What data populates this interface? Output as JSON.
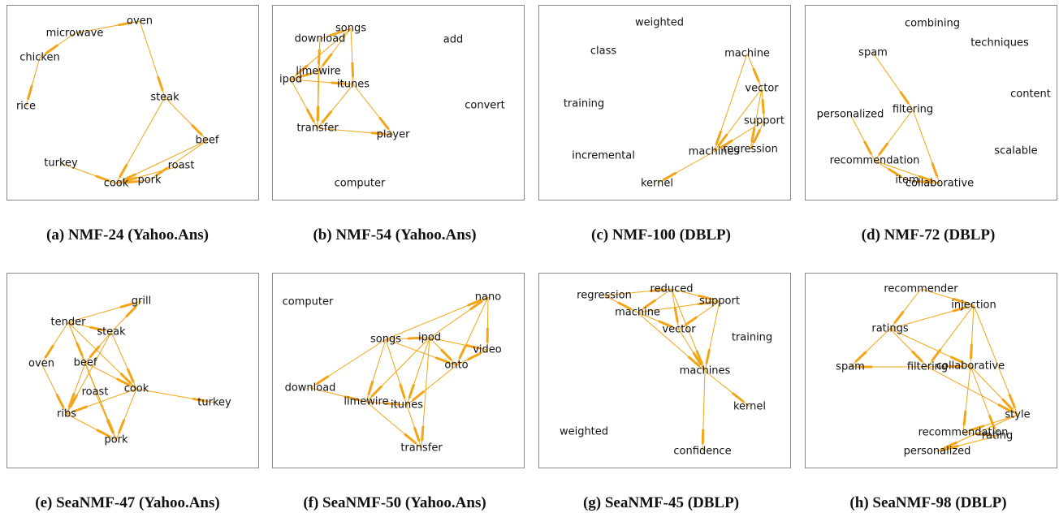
{
  "edge_color": "#f2a516",
  "panels": [
    {
      "caption": "(a) NMF-24 (Yahoo.Ans)",
      "nodes": [
        {
          "label": "oven"
        },
        {
          "label": "microwave"
        },
        {
          "label": "chicken"
        },
        {
          "label": "rice"
        },
        {
          "label": "steak"
        },
        {
          "label": "beef"
        },
        {
          "label": "turkey"
        },
        {
          "label": "roast"
        },
        {
          "label": "pork"
        },
        {
          "label": "cook"
        }
      ],
      "edges": [
        [
          "microwave",
          "oven"
        ],
        [
          "oven",
          "steak"
        ],
        [
          "microwave",
          "chicken"
        ],
        [
          "chicken",
          "rice"
        ],
        [
          "steak",
          "beef"
        ],
        [
          "steak",
          "cook"
        ],
        [
          "beef",
          "cook"
        ],
        [
          "beef",
          "pork"
        ],
        [
          "turkey",
          "cook"
        ],
        [
          "roast",
          "cook"
        ],
        [
          "pork",
          "cook"
        ]
      ]
    },
    {
      "caption": "(b) NMF-54 (Yahoo.Ans)",
      "nodes": [
        {
          "label": "songs"
        },
        {
          "label": "download"
        },
        {
          "label": "add"
        },
        {
          "label": "limewire"
        },
        {
          "label": "ipod"
        },
        {
          "label": "itunes"
        },
        {
          "label": "convert"
        },
        {
          "label": "transfer"
        },
        {
          "label": "player"
        },
        {
          "label": "computer"
        }
      ],
      "edges": [
        [
          "download",
          "songs"
        ],
        [
          "songs",
          "limewire"
        ],
        [
          "songs",
          "itunes"
        ],
        [
          "download",
          "limewire"
        ],
        [
          "download",
          "transfer"
        ],
        [
          "limewire",
          "ipod"
        ],
        [
          "ipod",
          "itunes"
        ],
        [
          "ipod",
          "transfer"
        ],
        [
          "limewire",
          "transfer"
        ],
        [
          "itunes",
          "transfer"
        ],
        [
          "itunes",
          "player"
        ],
        [
          "transfer",
          "player"
        ],
        [
          "songs",
          "ipod"
        ]
      ]
    },
    {
      "caption": "(c) NMF-100 (DBLP)",
      "nodes": [
        {
          "label": "weighted"
        },
        {
          "label": "class"
        },
        {
          "label": "machine"
        },
        {
          "label": "vector"
        },
        {
          "label": "training"
        },
        {
          "label": "support"
        },
        {
          "label": "incremental"
        },
        {
          "label": "machines"
        },
        {
          "label": "regression"
        },
        {
          "label": "kernel"
        }
      ],
      "edges": [
        [
          "machine",
          "vector"
        ],
        [
          "vector",
          "support"
        ],
        [
          "vector",
          "machines"
        ],
        [
          "vector",
          "regression"
        ],
        [
          "support",
          "machines"
        ],
        [
          "machines",
          "kernel"
        ],
        [
          "machine",
          "machines"
        ],
        [
          "support",
          "regression"
        ]
      ]
    },
    {
      "caption": "(d) NMF-72 (DBLP)",
      "nodes": [
        {
          "label": "combining"
        },
        {
          "label": "spam"
        },
        {
          "label": "techniques"
        },
        {
          "label": "content"
        },
        {
          "label": "filtering"
        },
        {
          "label": "personalized"
        },
        {
          "label": "recommendation"
        },
        {
          "label": "scalable"
        },
        {
          "label": "item"
        },
        {
          "label": "collaborative"
        }
      ],
      "edges": [
        [
          "spam",
          "filtering"
        ],
        [
          "filtering",
          "collaborative"
        ],
        [
          "personalized",
          "recommendation"
        ],
        [
          "recommendation",
          "collaborative"
        ],
        [
          "recommendation",
          "item"
        ],
        [
          "item",
          "collaborative"
        ],
        [
          "filtering",
          "recommendation"
        ]
      ]
    },
    {
      "caption": "(e) SeaNMF-47 (Yahoo.Ans)",
      "nodes": [
        {
          "label": "grill"
        },
        {
          "label": "tender"
        },
        {
          "label": "steak"
        },
        {
          "label": "oven"
        },
        {
          "label": "beef"
        },
        {
          "label": "roast"
        },
        {
          "label": "cook"
        },
        {
          "label": "turkey"
        },
        {
          "label": "ribs"
        },
        {
          "label": "pork"
        }
      ],
      "edges": [
        [
          "tender",
          "grill"
        ],
        [
          "steak",
          "grill"
        ],
        [
          "tender",
          "steak"
        ],
        [
          "tender",
          "oven"
        ],
        [
          "tender",
          "beef"
        ],
        [
          "tender",
          "cook"
        ],
        [
          "tender",
          "pork"
        ],
        [
          "steak",
          "beef"
        ],
        [
          "steak",
          "cook"
        ],
        [
          "steak",
          "ribs"
        ],
        [
          "oven",
          "ribs"
        ],
        [
          "beef",
          "ribs"
        ],
        [
          "beef",
          "pork"
        ],
        [
          "beef",
          "cook"
        ],
        [
          "cook",
          "turkey"
        ],
        [
          "cook",
          "ribs"
        ],
        [
          "cook",
          "pork"
        ],
        [
          "ribs",
          "pork"
        ],
        [
          "roast",
          "pork"
        ]
      ]
    },
    {
      "caption": "(f) SeaNMF-50 (Yahoo.Ans)",
      "nodes": [
        {
          "label": "nano"
        },
        {
          "label": "computer"
        },
        {
          "label": "songs"
        },
        {
          "label": "ipod"
        },
        {
          "label": "video"
        },
        {
          "label": "onto"
        },
        {
          "label": "download"
        },
        {
          "label": "limewire"
        },
        {
          "label": "itunes"
        },
        {
          "label": "transfer"
        }
      ],
      "edges": [
        [
          "songs",
          "nano"
        ],
        [
          "ipod",
          "nano"
        ],
        [
          "nano",
          "video"
        ],
        [
          "nano",
          "onto"
        ],
        [
          "songs",
          "ipod"
        ],
        [
          "songs",
          "onto"
        ],
        [
          "songs",
          "download"
        ],
        [
          "songs",
          "limewire"
        ],
        [
          "songs",
          "itunes"
        ],
        [
          "ipod",
          "onto"
        ],
        [
          "ipod",
          "limewire"
        ],
        [
          "ipod",
          "itunes"
        ],
        [
          "ipod",
          "transfer"
        ],
        [
          "ipod",
          "video"
        ],
        [
          "onto",
          "video"
        ],
        [
          "download",
          "limewire"
        ],
        [
          "limewire",
          "itunes"
        ],
        [
          "limewire",
          "transfer"
        ],
        [
          "itunes",
          "transfer"
        ],
        [
          "onto",
          "itunes"
        ]
      ]
    },
    {
      "caption": "(g) SeaNMF-45 (DBLP)",
      "nodes": [
        {
          "label": "regression"
        },
        {
          "label": "reduced"
        },
        {
          "label": "support"
        },
        {
          "label": "machine"
        },
        {
          "label": "vector"
        },
        {
          "label": "training"
        },
        {
          "label": "machines"
        },
        {
          "label": "kernel"
        },
        {
          "label": "weighted"
        },
        {
          "label": "confidence"
        }
      ],
      "edges": [
        [
          "regression",
          "reduced"
        ],
        [
          "regression",
          "machine"
        ],
        [
          "reduced",
          "support"
        ],
        [
          "reduced",
          "vector"
        ],
        [
          "reduced",
          "machine"
        ],
        [
          "support",
          "vector"
        ],
        [
          "support",
          "machines"
        ],
        [
          "machine",
          "vector"
        ],
        [
          "machine",
          "support"
        ],
        [
          "vector",
          "machines"
        ],
        [
          "reduced",
          "machines"
        ],
        [
          "machines",
          "kernel"
        ],
        [
          "machines",
          "confidence"
        ],
        [
          "machine",
          "machines"
        ]
      ]
    },
    {
      "caption": "(h) SeaNMF-98 (DBLP)",
      "nodes": [
        {
          "label": "recommender"
        },
        {
          "label": "injection"
        },
        {
          "label": "ratings"
        },
        {
          "label": "spam"
        },
        {
          "label": "filtering"
        },
        {
          "label": "collaborative"
        },
        {
          "label": "style"
        },
        {
          "label": "recommendation"
        },
        {
          "label": "rating"
        },
        {
          "label": "personalized"
        }
      ],
      "edges": [
        [
          "recommender",
          "ratings"
        ],
        [
          "recommender",
          "injection"
        ],
        [
          "ratings",
          "spam"
        ],
        [
          "ratings",
          "filtering"
        ],
        [
          "ratings",
          "collaborative"
        ],
        [
          "ratings",
          "injection"
        ],
        [
          "injection",
          "filtering"
        ],
        [
          "injection",
          "collaborative"
        ],
        [
          "filtering",
          "spam"
        ],
        [
          "filtering",
          "collaborative"
        ],
        [
          "filtering",
          "style"
        ],
        [
          "collaborative",
          "style"
        ],
        [
          "collaborative",
          "recommendation"
        ],
        [
          "collaborative",
          "rating"
        ],
        [
          "style",
          "recommendation"
        ],
        [
          "style",
          "personalized"
        ],
        [
          "rating",
          "personalized"
        ],
        [
          "recommendation",
          "rating"
        ],
        [
          "injection",
          "style"
        ]
      ]
    }
  ]
}
